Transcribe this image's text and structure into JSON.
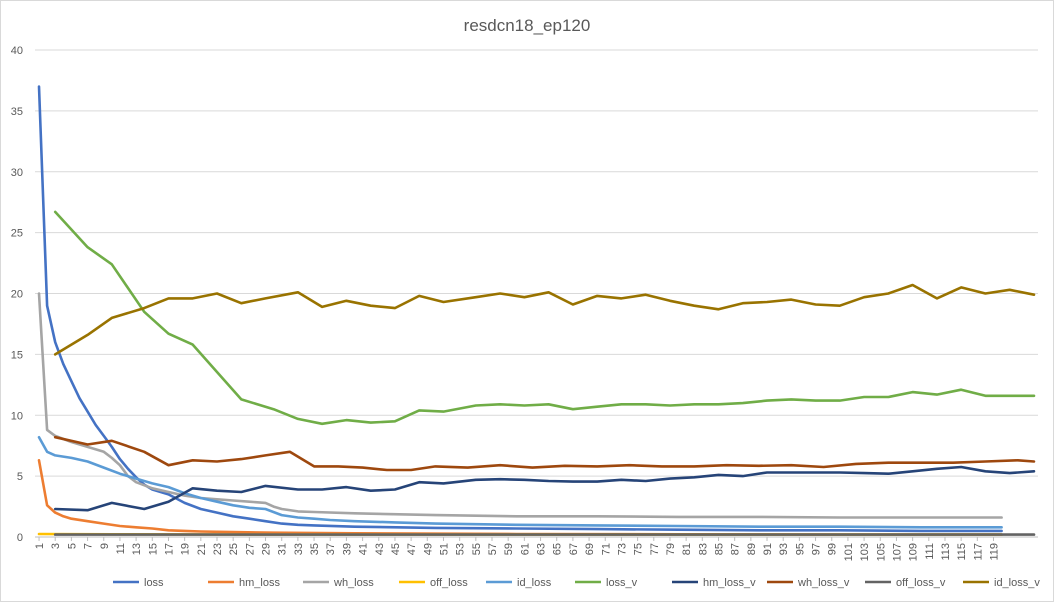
{
  "chart_data": {
    "type": "line",
    "title": "resdcn18_ep120",
    "xlabel": "",
    "ylabel": "",
    "ylim": [
      0,
      40
    ],
    "yticks": [
      0,
      5,
      10,
      15,
      20,
      25,
      30,
      35,
      40
    ],
    "x_range": [
      1,
      120
    ],
    "x_tick_labels": [
      1,
      3,
      5,
      7,
      9,
      11,
      13,
      15,
      17,
      19,
      21,
      23,
      25,
      27,
      29,
      31,
      33,
      35,
      37,
      39,
      41,
      43,
      45,
      47,
      49,
      51,
      53,
      55,
      57,
      59,
      61,
      63,
      65,
      67,
      69,
      71,
      73,
      75,
      77,
      79,
      81,
      83,
      85,
      87,
      89,
      91,
      93,
      95,
      97,
      99,
      101,
      103,
      105,
      107,
      109,
      111,
      113,
      115,
      117,
      119
    ],
    "grid": "horizontal",
    "legend_position": "bottom",
    "series": [
      {
        "name": "loss",
        "color": "#4472C4",
        "points": [
          [
            1,
            37
          ],
          [
            2,
            19
          ],
          [
            3,
            16
          ],
          [
            4,
            14.2
          ],
          [
            5,
            12.8
          ],
          [
            6,
            11.4
          ],
          [
            7,
            10.3
          ],
          [
            8,
            9.2
          ],
          [
            9,
            8.3
          ],
          [
            10,
            7.4
          ],
          [
            11,
            6.4
          ],
          [
            12,
            5.6
          ],
          [
            13,
            4.9
          ],
          [
            14,
            4.3
          ],
          [
            15,
            3.9
          ],
          [
            17,
            3.5
          ],
          [
            19,
            2.8
          ],
          [
            21,
            2.3
          ],
          [
            23,
            2.0
          ],
          [
            25,
            1.7
          ],
          [
            27,
            1.5
          ],
          [
            29,
            1.3
          ],
          [
            31,
            1.1
          ],
          [
            33,
            1.0
          ],
          [
            35,
            0.95
          ],
          [
            40,
            0.85
          ],
          [
            50,
            0.75
          ],
          [
            60,
            0.7
          ],
          [
            70,
            0.65
          ],
          [
            80,
            0.6
          ],
          [
            90,
            0.55
          ],
          [
            100,
            0.55
          ],
          [
            110,
            0.5
          ],
          [
            120,
            0.5
          ]
        ]
      },
      {
        "name": "hm_loss",
        "color": "#ED7D31",
        "points": [
          [
            1,
            6.3
          ],
          [
            2,
            2.6
          ],
          [
            3,
            2.0
          ],
          [
            4,
            1.7
          ],
          [
            5,
            1.5
          ],
          [
            7,
            1.3
          ],
          [
            9,
            1.1
          ],
          [
            11,
            0.9
          ],
          [
            13,
            0.8
          ],
          [
            15,
            0.7
          ],
          [
            17,
            0.55
          ],
          [
            19,
            0.5
          ],
          [
            21,
            0.45
          ],
          [
            25,
            0.4
          ],
          [
            30,
            0.35
          ],
          [
            40,
            0.3
          ],
          [
            60,
            0.25
          ],
          [
            80,
            0.22
          ],
          [
            100,
            0.2
          ],
          [
            120,
            0.2
          ]
        ]
      },
      {
        "name": "wh_loss",
        "color": "#A5A5A5",
        "points": [
          [
            1,
            20
          ],
          [
            2,
            8.8
          ],
          [
            3,
            8.3
          ],
          [
            5,
            7.8
          ],
          [
            7,
            7.4
          ],
          [
            9,
            7.0
          ],
          [
            10,
            6.5
          ],
          [
            11,
            5.9
          ],
          [
            12,
            5.0
          ],
          [
            13,
            4.5
          ],
          [
            15,
            4.0
          ],
          [
            17,
            3.7
          ],
          [
            19,
            3.4
          ],
          [
            21,
            3.2
          ],
          [
            23,
            3.1
          ],
          [
            25,
            3.0
          ],
          [
            27,
            2.9
          ],
          [
            29,
            2.8
          ],
          [
            30,
            2.5
          ],
          [
            31,
            2.3
          ],
          [
            33,
            2.1
          ],
          [
            35,
            2.05
          ],
          [
            40,
            1.95
          ],
          [
            50,
            1.8
          ],
          [
            60,
            1.7
          ],
          [
            70,
            1.7
          ],
          [
            80,
            1.65
          ],
          [
            90,
            1.65
          ],
          [
            100,
            1.6
          ],
          [
            110,
            1.6
          ],
          [
            120,
            1.6
          ]
        ]
      },
      {
        "name": "off_loss",
        "color": "#FFC000",
        "points": [
          [
            1,
            0.25
          ],
          [
            10,
            0.22
          ],
          [
            30,
            0.2
          ],
          [
            60,
            0.2
          ],
          [
            90,
            0.2
          ],
          [
            120,
            0.2
          ]
        ]
      },
      {
        "name": "id_loss",
        "color": "#5B9BD5",
        "points": [
          [
            1,
            8.2
          ],
          [
            2,
            7.0
          ],
          [
            3,
            6.7
          ],
          [
            5,
            6.5
          ],
          [
            7,
            6.2
          ],
          [
            9,
            5.7
          ],
          [
            11,
            5.2
          ],
          [
            13,
            4.8
          ],
          [
            15,
            4.4
          ],
          [
            17,
            4.1
          ],
          [
            19,
            3.6
          ],
          [
            21,
            3.2
          ],
          [
            23,
            2.9
          ],
          [
            25,
            2.6
          ],
          [
            27,
            2.4
          ],
          [
            29,
            2.3
          ],
          [
            31,
            1.8
          ],
          [
            33,
            1.6
          ],
          [
            35,
            1.5
          ],
          [
            37,
            1.4
          ],
          [
            40,
            1.3
          ],
          [
            45,
            1.2
          ],
          [
            50,
            1.1
          ],
          [
            55,
            1.05
          ],
          [
            60,
            1.0
          ],
          [
            70,
            0.95
          ],
          [
            80,
            0.9
          ],
          [
            90,
            0.85
          ],
          [
            100,
            0.85
          ],
          [
            110,
            0.8
          ],
          [
            120,
            0.8
          ]
        ]
      },
      {
        "name": "loss_v",
        "color": "#70AD47",
        "points": [
          [
            3,
            26.7
          ],
          [
            7,
            23.8
          ],
          [
            10,
            22.4
          ],
          [
            14,
            18.5
          ],
          [
            17,
            16.7
          ],
          [
            20,
            15.8
          ],
          [
            26,
            11.3
          ],
          [
            30,
            10.5
          ],
          [
            33,
            9.7
          ],
          [
            36,
            9.3
          ],
          [
            39,
            9.6
          ],
          [
            42,
            9.4
          ],
          [
            45,
            9.5
          ],
          [
            48,
            10.4
          ],
          [
            51,
            10.3
          ],
          [
            55,
            10.8
          ],
          [
            58,
            10.9
          ],
          [
            61,
            10.8
          ],
          [
            64,
            10.9
          ],
          [
            67,
            10.5
          ],
          [
            70,
            10.7
          ],
          [
            73,
            10.9
          ],
          [
            76,
            10.9
          ],
          [
            79,
            10.8
          ],
          [
            82,
            10.9
          ],
          [
            85,
            10.9
          ],
          [
            88,
            11.0
          ],
          [
            91,
            11.2
          ],
          [
            94,
            11.3
          ],
          [
            97,
            11.2
          ],
          [
            100,
            11.2
          ],
          [
            103,
            11.5
          ],
          [
            106,
            11.5
          ],
          [
            109,
            11.9
          ],
          [
            112,
            11.7
          ],
          [
            115,
            12.1
          ],
          [
            118,
            11.6
          ],
          [
            121,
            11.6
          ],
          [
            124,
            11.6
          ]
        ]
      },
      {
        "name": "hm_loss_v",
        "color": "#264478",
        "points": [
          [
            3,
            2.3
          ],
          [
            7,
            2.2
          ],
          [
            10,
            2.8
          ],
          [
            14,
            2.3
          ],
          [
            17,
            2.9
          ],
          [
            20,
            4.0
          ],
          [
            23,
            3.8
          ],
          [
            26,
            3.7
          ],
          [
            29,
            4.2
          ],
          [
            33,
            3.9
          ],
          [
            36,
            3.9
          ],
          [
            39,
            4.1
          ],
          [
            42,
            3.8
          ],
          [
            45,
            3.9
          ],
          [
            48,
            4.5
          ],
          [
            51,
            4.4
          ],
          [
            55,
            4.7
          ],
          [
            58,
            4.75
          ],
          [
            61,
            4.7
          ],
          [
            64,
            4.6
          ],
          [
            67,
            4.55
          ],
          [
            70,
            4.55
          ],
          [
            73,
            4.7
          ],
          [
            76,
            4.6
          ],
          [
            79,
            4.8
          ],
          [
            82,
            4.9
          ],
          [
            85,
            5.1
          ],
          [
            88,
            5.0
          ],
          [
            91,
            5.3
          ],
          [
            94,
            5.3
          ],
          [
            97,
            5.3
          ],
          [
            100,
            5.3
          ],
          [
            103,
            5.25
          ],
          [
            106,
            5.2
          ],
          [
            109,
            5.4
          ],
          [
            112,
            5.6
          ],
          [
            115,
            5.75
          ],
          [
            118,
            5.4
          ],
          [
            121,
            5.25
          ],
          [
            124,
            5.4
          ]
        ]
      },
      {
        "name": "wh_loss_v",
        "color": "#9E480E",
        "points": [
          [
            3,
            8.2
          ],
          [
            7,
            7.6
          ],
          [
            10,
            7.9
          ],
          [
            14,
            7.0
          ],
          [
            17,
            5.9
          ],
          [
            20,
            6.3
          ],
          [
            23,
            6.2
          ],
          [
            26,
            6.4
          ],
          [
            29,
            6.7
          ],
          [
            32,
            7.0
          ],
          [
            35,
            5.8
          ],
          [
            38,
            5.8
          ],
          [
            41,
            5.7
          ],
          [
            44,
            5.5
          ],
          [
            47,
            5.5
          ],
          [
            50,
            5.8
          ],
          [
            54,
            5.7
          ],
          [
            58,
            5.9
          ],
          [
            62,
            5.7
          ],
          [
            66,
            5.85
          ],
          [
            70,
            5.8
          ],
          [
            74,
            5.9
          ],
          [
            78,
            5.8
          ],
          [
            82,
            5.8
          ],
          [
            86,
            5.9
          ],
          [
            90,
            5.85
          ],
          [
            94,
            5.9
          ],
          [
            98,
            5.75
          ],
          [
            102,
            6.0
          ],
          [
            106,
            6.1
          ],
          [
            110,
            6.1
          ],
          [
            114,
            6.1
          ],
          [
            118,
            6.2
          ],
          [
            122,
            6.3
          ],
          [
            124,
            6.2
          ]
        ]
      },
      {
        "name": "off_loss_v",
        "color": "#636363",
        "points": [
          [
            3,
            0.2
          ],
          [
            10,
            0.2
          ],
          [
            30,
            0.2
          ],
          [
            60,
            0.2
          ],
          [
            90,
            0.2
          ],
          [
            124,
            0.2
          ]
        ]
      },
      {
        "name": "id_loss_v",
        "color": "#997300",
        "points": [
          [
            3,
            15.0
          ],
          [
            7,
            16.6
          ],
          [
            10,
            18.0
          ],
          [
            14,
            18.8
          ],
          [
            17,
            19.6
          ],
          [
            20,
            19.6
          ],
          [
            23,
            20.0
          ],
          [
            26,
            19.2
          ],
          [
            29,
            19.6
          ],
          [
            33,
            20.1
          ],
          [
            36,
            18.9
          ],
          [
            39,
            19.4
          ],
          [
            42,
            19.0
          ],
          [
            45,
            18.8
          ],
          [
            48,
            19.8
          ],
          [
            51,
            19.3
          ],
          [
            55,
            19.7
          ],
          [
            58,
            20.0
          ],
          [
            61,
            19.7
          ],
          [
            64,
            20.1
          ],
          [
            67,
            19.1
          ],
          [
            70,
            19.8
          ],
          [
            73,
            19.6
          ],
          [
            76,
            19.9
          ],
          [
            79,
            19.4
          ],
          [
            82,
            19.0
          ],
          [
            85,
            18.7
          ],
          [
            88,
            19.2
          ],
          [
            91,
            19.3
          ],
          [
            94,
            19.5
          ],
          [
            97,
            19.1
          ],
          [
            100,
            19.0
          ],
          [
            103,
            19.7
          ],
          [
            106,
            20.0
          ],
          [
            109,
            20.7
          ],
          [
            112,
            19.6
          ],
          [
            115,
            20.5
          ],
          [
            118,
            20.0
          ],
          [
            121,
            20.3
          ],
          [
            124,
            19.9
          ]
        ]
      }
    ]
  }
}
